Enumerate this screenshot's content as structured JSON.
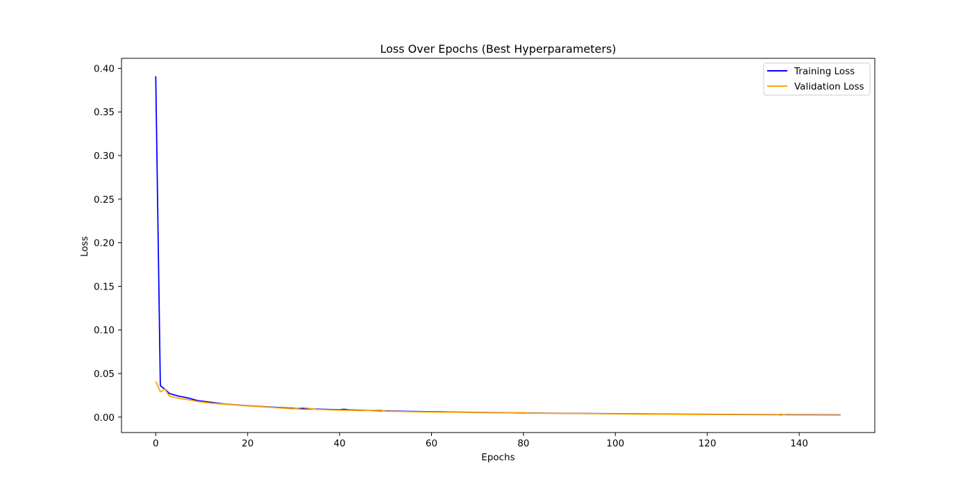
{
  "chart_data": {
    "type": "line",
    "title": "Loss Over Epochs (Best Hyperparameters)",
    "xlabel": "Epochs",
    "ylabel": "Loss",
    "xlim": [
      -7.45,
      156.45
    ],
    "ylim": [
      -0.0177,
      0.4115
    ],
    "xticks": [
      0,
      20,
      40,
      60,
      80,
      100,
      120,
      140
    ],
    "yticks": [
      0.0,
      0.05,
      0.1,
      0.15,
      0.2,
      0.25,
      0.3,
      0.35,
      0.4
    ],
    "xtick_labels": [
      "0",
      "20",
      "40",
      "60",
      "80",
      "100",
      "120",
      "140"
    ],
    "ytick_labels": [
      "0.00",
      "0.05",
      "0.10",
      "0.15",
      "0.20",
      "0.25",
      "0.30",
      "0.35",
      "0.40"
    ],
    "grid": false,
    "legend_position": "top-right",
    "series": [
      {
        "name": "Training Loss",
        "color": "#0000ff",
        "points": [
          [
            0,
            0.391
          ],
          [
            1,
            0.036
          ],
          [
            2,
            0.032
          ],
          [
            3,
            0.027
          ],
          [
            5,
            0.024
          ],
          [
            7,
            0.022
          ],
          [
            9,
            0.019
          ],
          [
            12,
            0.017
          ],
          [
            15,
            0.015
          ],
          [
            20,
            0.013
          ],
          [
            25,
            0.0115
          ],
          [
            30,
            0.01
          ],
          [
            35,
            0.0092
          ],
          [
            40,
            0.0085
          ],
          [
            41,
            0.009
          ],
          [
            42,
            0.0083
          ],
          [
            45,
            0.0078
          ],
          [
            50,
            0.0072
          ],
          [
            55,
            0.0066
          ],
          [
            60,
            0.0062
          ],
          [
            65,
            0.0058
          ],
          [
            70,
            0.0054
          ],
          [
            75,
            0.0051
          ],
          [
            80,
            0.0048
          ],
          [
            85,
            0.0045
          ],
          [
            90,
            0.0043
          ],
          [
            95,
            0.0041
          ],
          [
            100,
            0.0039
          ],
          [
            105,
            0.0037
          ],
          [
            110,
            0.0035
          ],
          [
            115,
            0.0033
          ],
          [
            120,
            0.0032
          ],
          [
            125,
            0.0031
          ],
          [
            130,
            0.0029
          ],
          [
            135,
            0.0028
          ],
          [
            140,
            0.0027
          ],
          [
            145,
            0.0026
          ],
          [
            149,
            0.0025
          ]
        ]
      },
      {
        "name": "Validation Loss",
        "color": "#ffa500",
        "points": [
          [
            0,
            0.041
          ],
          [
            1,
            0.029
          ],
          [
            2,
            0.032
          ],
          [
            3,
            0.024
          ],
          [
            5,
            0.0215
          ],
          [
            7,
            0.02
          ],
          [
            9,
            0.018
          ],
          [
            12,
            0.016
          ],
          [
            15,
            0.0148
          ],
          [
            20,
            0.0128
          ],
          [
            25,
            0.0112
          ],
          [
            30,
            0.0095
          ],
          [
            32,
            0.011
          ],
          [
            35,
            0.0088
          ],
          [
            40,
            0.008
          ],
          [
            45,
            0.0075
          ],
          [
            49,
            0.008
          ],
          [
            50,
            0.0068
          ],
          [
            55,
            0.0062
          ],
          [
            60,
            0.0058
          ],
          [
            65,
            0.0056
          ],
          [
            70,
            0.0052
          ],
          [
            75,
            0.0049
          ],
          [
            80,
            0.0052
          ],
          [
            81,
            0.0046
          ],
          [
            85,
            0.0044
          ],
          [
            90,
            0.0042
          ],
          [
            95,
            0.0039
          ],
          [
            100,
            0.0037
          ],
          [
            105,
            0.0034
          ],
          [
            110,
            0.0033
          ],
          [
            115,
            0.0031
          ],
          [
            120,
            0.003
          ],
          [
            125,
            0.0029
          ],
          [
            130,
            0.0027
          ],
          [
            135,
            0.0026
          ],
          [
            136,
            0.0033
          ],
          [
            137,
            0.0025
          ],
          [
            140,
            0.0024
          ],
          [
            145,
            0.0023
          ],
          [
            149,
            0.0022
          ]
        ]
      }
    ]
  }
}
